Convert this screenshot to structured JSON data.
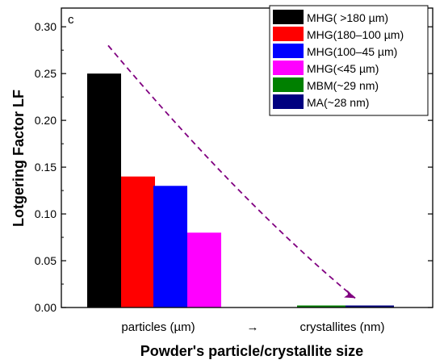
{
  "chart_data": {
    "type": "bar",
    "panel_label": "c",
    "xlabel": "Powder's particle/crystallite size",
    "ylabel": "Lotgering Factor LF",
    "ylim": [
      0,
      0.32
    ],
    "yticks": [
      "0.00",
      "0.05",
      "0.10",
      "0.15",
      "0.20",
      "0.25",
      "0.30"
    ],
    "x_category_labels": [
      "particles (µm)",
      "→",
      "crystallites (nm)"
    ],
    "grid": false,
    "legend_position": "top-right",
    "series": [
      {
        "name": "MHG( >180 µm)",
        "value": 0.25,
        "color": "#000000"
      },
      {
        "name": "MHG(180–100 µm)",
        "value": 0.14,
        "color": "#ff0000"
      },
      {
        "name": "MHG(100–45 µm)",
        "value": 0.13,
        "color": "#0000ff"
      },
      {
        "name": "MHG(<45 µm)",
        "value": 0.08,
        "color": "#ff00ff"
      },
      {
        "name": "MBM(~29 nm)",
        "value": 0.0,
        "color": "#008000"
      },
      {
        "name": "MA(~28 nm)",
        "value": 0.0,
        "color": "#000080"
      }
    ],
    "trend_arrow": {
      "style": "dashed",
      "color": "#800080",
      "from": {
        "series": 0,
        "y": 0.28
      },
      "to": {
        "series": 5,
        "y": 0.01
      }
    }
  }
}
